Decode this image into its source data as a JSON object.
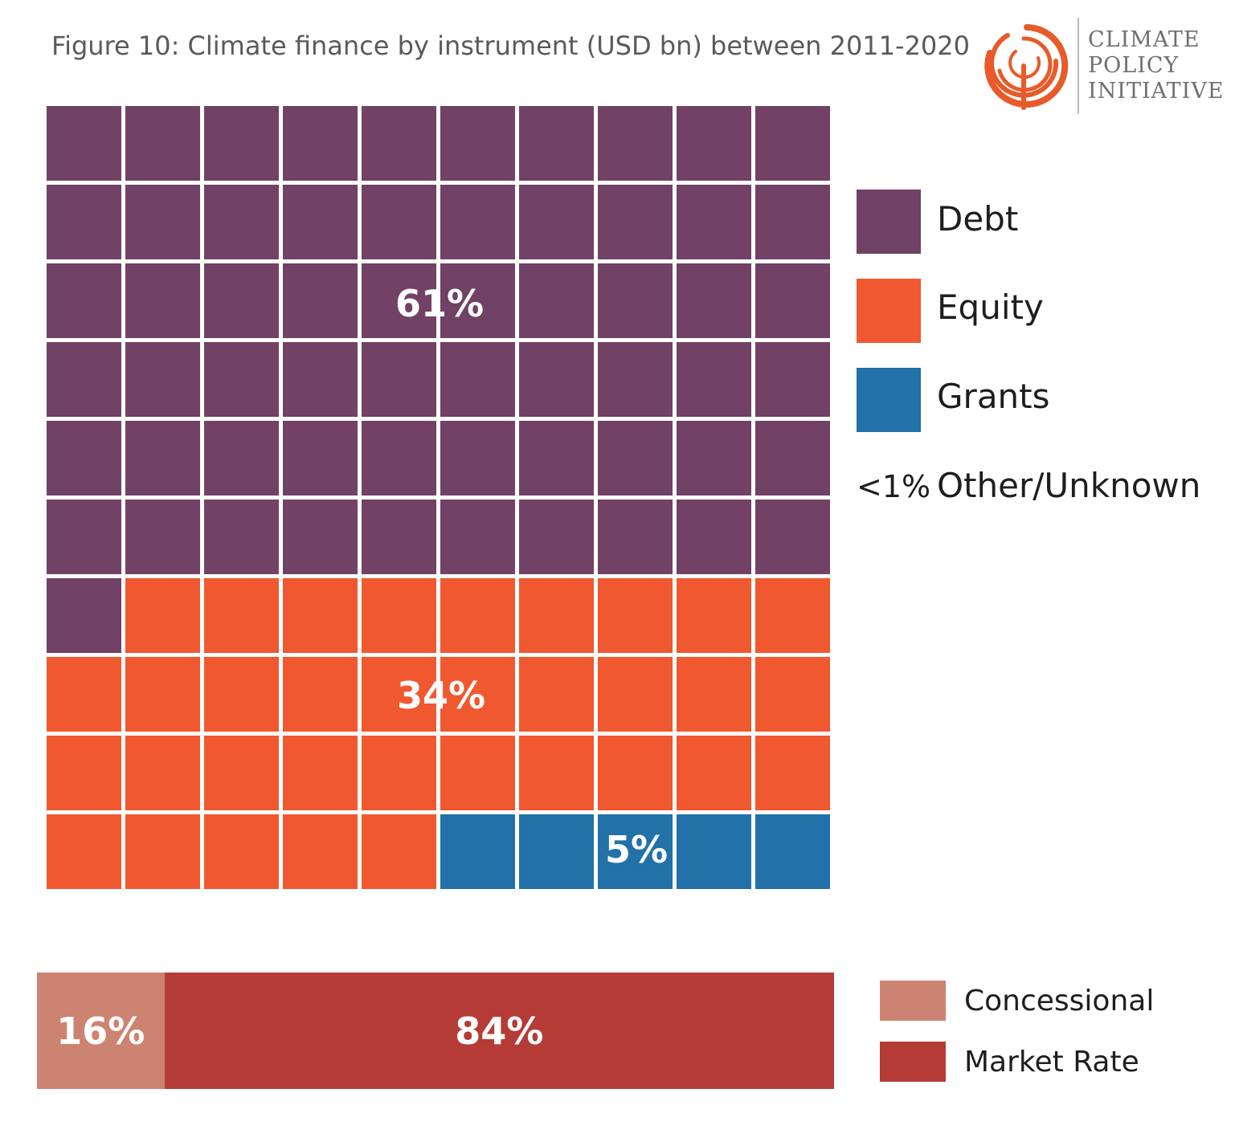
{
  "title": "Figure 10: Climate finance by instrument (USD bn) between 2011-2020",
  "logo": {
    "lines": [
      "CLIMATE",
      "POLICY",
      "INITIATIVE"
    ],
    "color": "#e85a2a"
  },
  "chart_data": [
    {
      "type": "waffle",
      "grid": {
        "rows": 10,
        "cols": 10
      },
      "categories": [
        "Debt",
        "Equity",
        "Grants"
      ],
      "values": [
        61,
        34,
        5
      ],
      "labels": [
        "61%",
        "34%",
        "5%"
      ],
      "colors": [
        "#714265",
        "#f0582f",
        "#2271a8"
      ],
      "other": {
        "pct_label": "<1%",
        "label": "Other/Unknown"
      },
      "legend_position": "right"
    },
    {
      "type": "bar",
      "orientation": "horizontal-stacked",
      "categories": [
        "Concessional",
        "Market Rate"
      ],
      "values": [
        16,
        84
      ],
      "labels": [
        "16%",
        "84%"
      ],
      "colors": [
        "#cd8371",
        "#b53c36"
      ],
      "legend_position": "right"
    }
  ]
}
